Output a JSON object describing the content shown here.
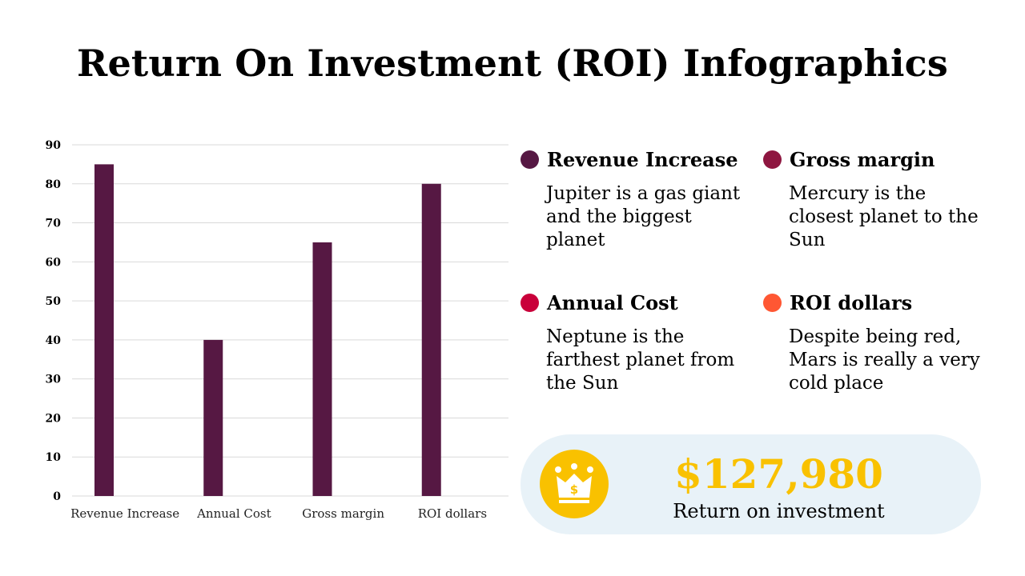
{
  "title": "Return On Investment (ROI) Infographics",
  "chart_data": {
    "type": "bar",
    "categories": [
      "Revenue Increase",
      "Annual Cost",
      "Gross margin",
      "ROI dollars"
    ],
    "values": [
      85,
      40,
      65,
      80
    ],
    "yticks": [
      0,
      10,
      20,
      30,
      40,
      50,
      60,
      70,
      80,
      90
    ],
    "ylim": [
      0,
      90
    ],
    "bar_color": "#561843",
    "grid": true,
    "title": "",
    "xlabel": "",
    "ylabel": ""
  },
  "legend": [
    {
      "title": "Revenue Increase",
      "desc": "Jupiter is a gas giant and the biggest planet",
      "color": "#561843"
    },
    {
      "title": "Gross margin",
      "desc": "Mercury is the closest planet to the Sun",
      "color": "#8e1640"
    },
    {
      "title": "Annual Cost",
      "desc": "Neptune is the farthest planet from the Sun",
      "color": "#c9003a"
    },
    {
      "title": "ROI dollars",
      "desc": "Despite being red, Mars is really a very cold place",
      "color": "#ff5733"
    }
  ],
  "roi": {
    "value": "$127,980",
    "label": "Return on investment",
    "icon": "crown-dollar-icon",
    "value_color": "#f9c100"
  }
}
